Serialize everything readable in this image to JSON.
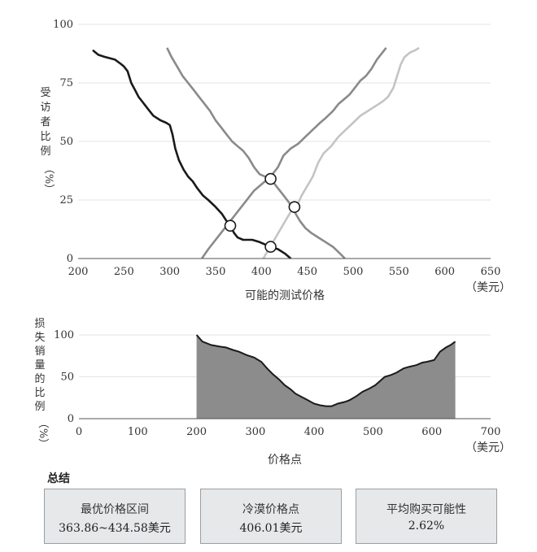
{
  "chart_data": [
    {
      "type": "line",
      "ylabel": [
        "受",
        "访",
        "者",
        "比",
        "例",
        "（%）"
      ],
      "xlabel": "可能的测试价格",
      "x_unit": "（美元）",
      "xlim": [
        200,
        650
      ],
      "ylim": [
        0,
        100
      ],
      "xticks": [
        200,
        250,
        300,
        350,
        400,
        450,
        500,
        550,
        600,
        650
      ],
      "yticks": [
        0,
        25,
        50,
        75,
        100
      ],
      "grid": true,
      "series": [
        {
          "color": "#1a1a1a",
          "points": [
            [
              216,
              89
            ],
            [
              222,
              87
            ],
            [
              230,
              86
            ],
            [
              240,
              85
            ],
            [
              247,
              83
            ],
            [
              250,
              82
            ],
            [
              254,
              80
            ],
            [
              258,
              75
            ],
            [
              262,
              72
            ],
            [
              266,
              69
            ],
            [
              270,
              67
            ],
            [
              276,
              64
            ],
            [
              282,
              61
            ],
            [
              290,
              59
            ],
            [
              296,
              58
            ],
            [
              300,
              57
            ],
            [
              303,
              53
            ],
            [
              306,
              47
            ],
            [
              310,
              42
            ],
            [
              315,
              38
            ],
            [
              320,
              35
            ],
            [
              325,
              33
            ],
            [
              330,
              30
            ],
            [
              336,
              27
            ],
            [
              342,
              25
            ],
            [
              350,
              22
            ],
            [
              357,
              19
            ],
            [
              362,
              16
            ],
            [
              366,
              14
            ],
            [
              370,
              11
            ],
            [
              374,
              9
            ],
            [
              380,
              8
            ],
            [
              390,
              8
            ],
            [
              398,
              7
            ],
            [
              404,
              6
            ],
            [
              410,
              5
            ],
            [
              418,
              4
            ],
            [
              426,
              2
            ],
            [
              432,
              0
            ]
          ]
        },
        {
          "color": "#8a8a8a",
          "points": [
            [
              297,
              90
            ],
            [
              302,
              86
            ],
            [
              308,
              82
            ],
            [
              314,
              78
            ],
            [
              320,
              75
            ],
            [
              326,
              72
            ],
            [
              332,
              69
            ],
            [
              338,
              66
            ],
            [
              344,
              63
            ],
            [
              350,
              59
            ],
            [
              356,
              56
            ],
            [
              362,
              53
            ],
            [
              368,
              50
            ],
            [
              374,
              48
            ],
            [
              380,
              46
            ],
            [
              386,
              43
            ],
            [
              392,
              39
            ],
            [
              398,
              36
            ],
            [
              404,
              35
            ],
            [
              410,
              34
            ],
            [
              418,
              30
            ],
            [
              424,
              27
            ],
            [
              430,
              24
            ],
            [
              436,
              20
            ],
            [
              442,
              16
            ],
            [
              448,
              13
            ],
            [
              454,
              11
            ],
            [
              462,
              9
            ],
            [
              470,
              7
            ],
            [
              478,
              5
            ],
            [
              486,
              2
            ],
            [
              491,
              0
            ]
          ]
        },
        {
          "color": "#8a8a8a",
          "points": [
            [
              335,
              0
            ],
            [
              342,
              4
            ],
            [
              350,
              8
            ],
            [
              356,
              11
            ],
            [
              362,
              14
            ],
            [
              368,
              17
            ],
            [
              374,
              20
            ],
            [
              380,
              23
            ],
            [
              386,
              26
            ],
            [
              392,
              29
            ],
            [
              398,
              31
            ],
            [
              404,
              33
            ],
            [
              410,
              35
            ],
            [
              418,
              39
            ],
            [
              424,
              44
            ],
            [
              432,
              47
            ],
            [
              440,
              49
            ],
            [
              448,
              52
            ],
            [
              456,
              55
            ],
            [
              464,
              58
            ],
            [
              470,
              60
            ],
            [
              478,
              63
            ],
            [
              484,
              66
            ],
            [
              490,
              68
            ],
            [
              496,
              70
            ],
            [
              502,
              73
            ],
            [
              508,
              76
            ],
            [
              514,
              78
            ],
            [
              520,
              81
            ],
            [
              526,
              85
            ],
            [
              532,
              88
            ],
            [
              536,
              90
            ]
          ]
        },
        {
          "color": "#c4c4c4",
          "points": [
            [
              402,
              0
            ],
            [
              408,
              4
            ],
            [
              414,
              8
            ],
            [
              420,
              12
            ],
            [
              426,
              16
            ],
            [
              432,
              20
            ],
            [
              438,
              22
            ],
            [
              444,
              27
            ],
            [
              450,
              31
            ],
            [
              456,
              35
            ],
            [
              462,
              41
            ],
            [
              468,
              45
            ],
            [
              476,
              48
            ],
            [
              484,
              52
            ],
            [
              492,
              55
            ],
            [
              500,
              58
            ],
            [
              508,
              61
            ],
            [
              516,
              63
            ],
            [
              524,
              65
            ],
            [
              532,
              67
            ],
            [
              538,
              69
            ],
            [
              544,
              73
            ],
            [
              548,
              78
            ],
            [
              552,
              83
            ],
            [
              556,
              86
            ],
            [
              562,
              88
            ],
            [
              568,
              89
            ],
            [
              572,
              90
            ]
          ]
        }
      ],
      "intersections": [
        [
          366,
          14
        ],
        [
          410,
          34
        ],
        [
          410,
          5
        ],
        [
          436,
          22
        ]
      ]
    },
    {
      "type": "area",
      "ylabel": [
        "损",
        "失",
        "销",
        "量",
        "的",
        "比",
        "例",
        "（%）"
      ],
      "xlabel": "价格点",
      "x_unit": "（美元）",
      "xlim": [
        0,
        700
      ],
      "ylim": [
        0,
        100
      ],
      "xticks": [
        0,
        100,
        200,
        300,
        400,
        500,
        600,
        700
      ],
      "yticks": [
        0,
        50,
        100
      ],
      "grid": true,
      "color": "#8c8c8c",
      "points": [
        [
          200,
          100
        ],
        [
          210,
          92
        ],
        [
          225,
          88
        ],
        [
          240,
          86
        ],
        [
          250,
          85
        ],
        [
          262,
          82
        ],
        [
          272,
          80
        ],
        [
          285,
          76
        ],
        [
          298,
          73
        ],
        [
          310,
          68
        ],
        [
          320,
          60
        ],
        [
          330,
          53
        ],
        [
          340,
          47
        ],
        [
          350,
          40
        ],
        [
          360,
          35
        ],
        [
          368,
          30
        ],
        [
          376,
          27
        ],
        [
          384,
          24
        ],
        [
          392,
          21
        ],
        [
          400,
          18
        ],
        [
          410,
          16
        ],
        [
          420,
          15
        ],
        [
          430,
          15
        ],
        [
          440,
          18
        ],
        [
          452,
          20
        ],
        [
          460,
          22
        ],
        [
          472,
          27
        ],
        [
          482,
          32
        ],
        [
          494,
          36
        ],
        [
          504,
          40
        ],
        [
          512,
          45
        ],
        [
          520,
          50
        ],
        [
          530,
          52
        ],
        [
          540,
          55
        ],
        [
          552,
          60
        ],
        [
          562,
          62
        ],
        [
          574,
          64
        ],
        [
          584,
          67
        ],
        [
          592,
          68
        ],
        [
          604,
          70
        ],
        [
          614,
          80
        ],
        [
          624,
          85
        ],
        [
          632,
          88
        ],
        [
          640,
          92
        ]
      ]
    }
  ],
  "summary": {
    "title": "总结",
    "cards": [
      {
        "title": "最优价格区间",
        "value": "363.86~434.58美元"
      },
      {
        "title": "冷漠价格点",
        "value": "406.01美元"
      },
      {
        "title": "平均购买可能性",
        "value": "2.62%"
      }
    ]
  }
}
